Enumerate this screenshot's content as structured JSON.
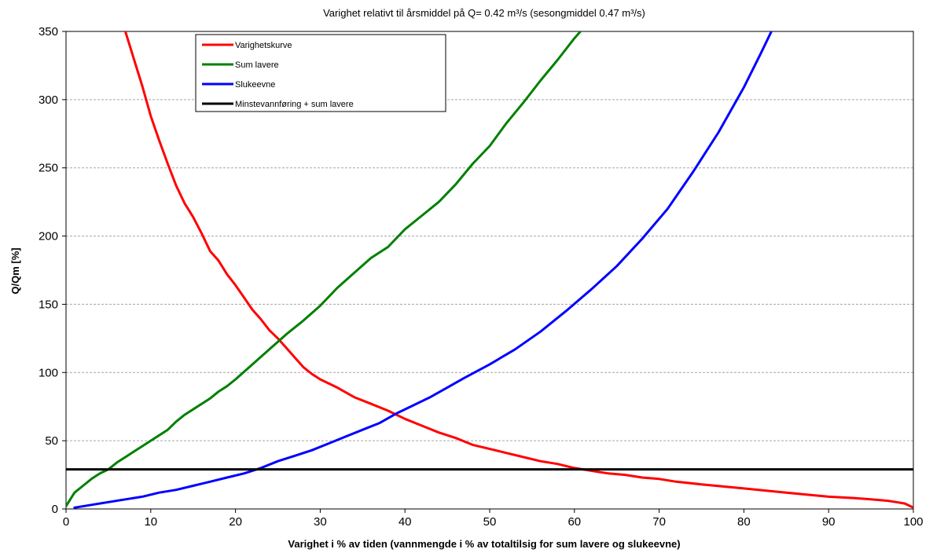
{
  "chart_data": {
    "type": "line",
    "title": "Varighet relativt til årsmiddel på Q= 0.42 m³/s (sesongmiddel 0.47 m³/s)",
    "xlabel": "Varighet i % av tiden (vannmengde i % av totaltilsig for sum lavere og slukeevne)",
    "ylabel": "Q/Qm [%]",
    "xlim": [
      0,
      100
    ],
    "ylim": [
      0,
      350
    ],
    "xticks": [
      0,
      10,
      20,
      30,
      40,
      50,
      60,
      70,
      80,
      90,
      100
    ],
    "yticks": [
      0,
      50,
      100,
      150,
      200,
      250,
      300,
      350
    ],
    "grid": "horizontal dashed",
    "legend_position": "top-left",
    "series": [
      {
        "name": "Varighetskurve",
        "color": "#ff0000",
        "x": [
          7,
          8,
          9,
          10,
          11,
          12,
          13,
          14,
          15,
          16,
          17,
          18,
          19,
          20,
          21,
          22,
          23,
          24,
          25,
          26,
          27,
          28,
          29,
          30,
          32,
          34,
          36,
          38,
          40,
          42,
          44,
          46,
          48,
          50,
          52,
          54,
          56,
          58,
          60,
          62,
          64,
          66,
          68,
          70,
          72,
          75,
          80,
          85,
          90,
          93,
          95,
          97,
          98,
          99,
          100
        ],
        "y": [
          350,
          330,
          310,
          288,
          270,
          253,
          237,
          224,
          214,
          202,
          189,
          182,
          172,
          164,
          155,
          146,
          139,
          131,
          125,
          118,
          111,
          104,
          99,
          95,
          89,
          82,
          77,
          72,
          66,
          61,
          56,
          52,
          47,
          44,
          41,
          38,
          35,
          33,
          30,
          28,
          26,
          25,
          23,
          22,
          20,
          18,
          15,
          12,
          9,
          8,
          7,
          6,
          5,
          4,
          1
        ]
      },
      {
        "name": "Sum lavere",
        "color": "#008000",
        "x": [
          0,
          0.5,
          1,
          2,
          3,
          4,
          5,
          6,
          7,
          8,
          9,
          10,
          11,
          12,
          13,
          14,
          15,
          16,
          17,
          18,
          19,
          20,
          22,
          24,
          26,
          28,
          30,
          32,
          34,
          36,
          38,
          40,
          42,
          44,
          46,
          48,
          50,
          52,
          54,
          56,
          58,
          60,
          61
        ],
        "y": [
          2,
          7,
          12,
          17,
          22,
          26,
          29,
          34,
          38,
          42,
          46,
          50,
          54,
          58,
          64,
          69,
          73,
          77,
          81,
          86,
          90,
          95,
          106,
          117,
          128,
          138,
          149,
          162,
          173,
          184,
          192,
          205,
          215,
          225,
          238,
          253,
          266,
          283,
          298,
          314,
          329,
          345,
          352
        ]
      },
      {
        "name": "Slukeevne",
        "color": "#0000ff",
        "x": [
          1,
          3,
          5,
          7,
          9,
          11,
          13,
          15,
          17,
          19,
          21,
          23,
          25,
          27,
          29,
          31,
          33,
          35,
          37,
          39,
          41,
          43,
          45,
          47,
          50,
          53,
          56,
          59,
          62,
          65,
          68,
          71,
          74,
          77,
          80,
          82,
          83.4
        ],
        "y": [
          1,
          3,
          5,
          7,
          9,
          12,
          14,
          17,
          20,
          23,
          26,
          30,
          35,
          39,
          43,
          48,
          53,
          58,
          63,
          70,
          76,
          82,
          89,
          96,
          106,
          117,
          130,
          145,
          161,
          178,
          198,
          220,
          247,
          276,
          309,
          334,
          352
        ]
      },
      {
        "name": "Minstevannføring + sum lavere",
        "color": "#000000",
        "x": [
          0,
          100
        ],
        "y": [
          29,
          29
        ]
      }
    ]
  }
}
